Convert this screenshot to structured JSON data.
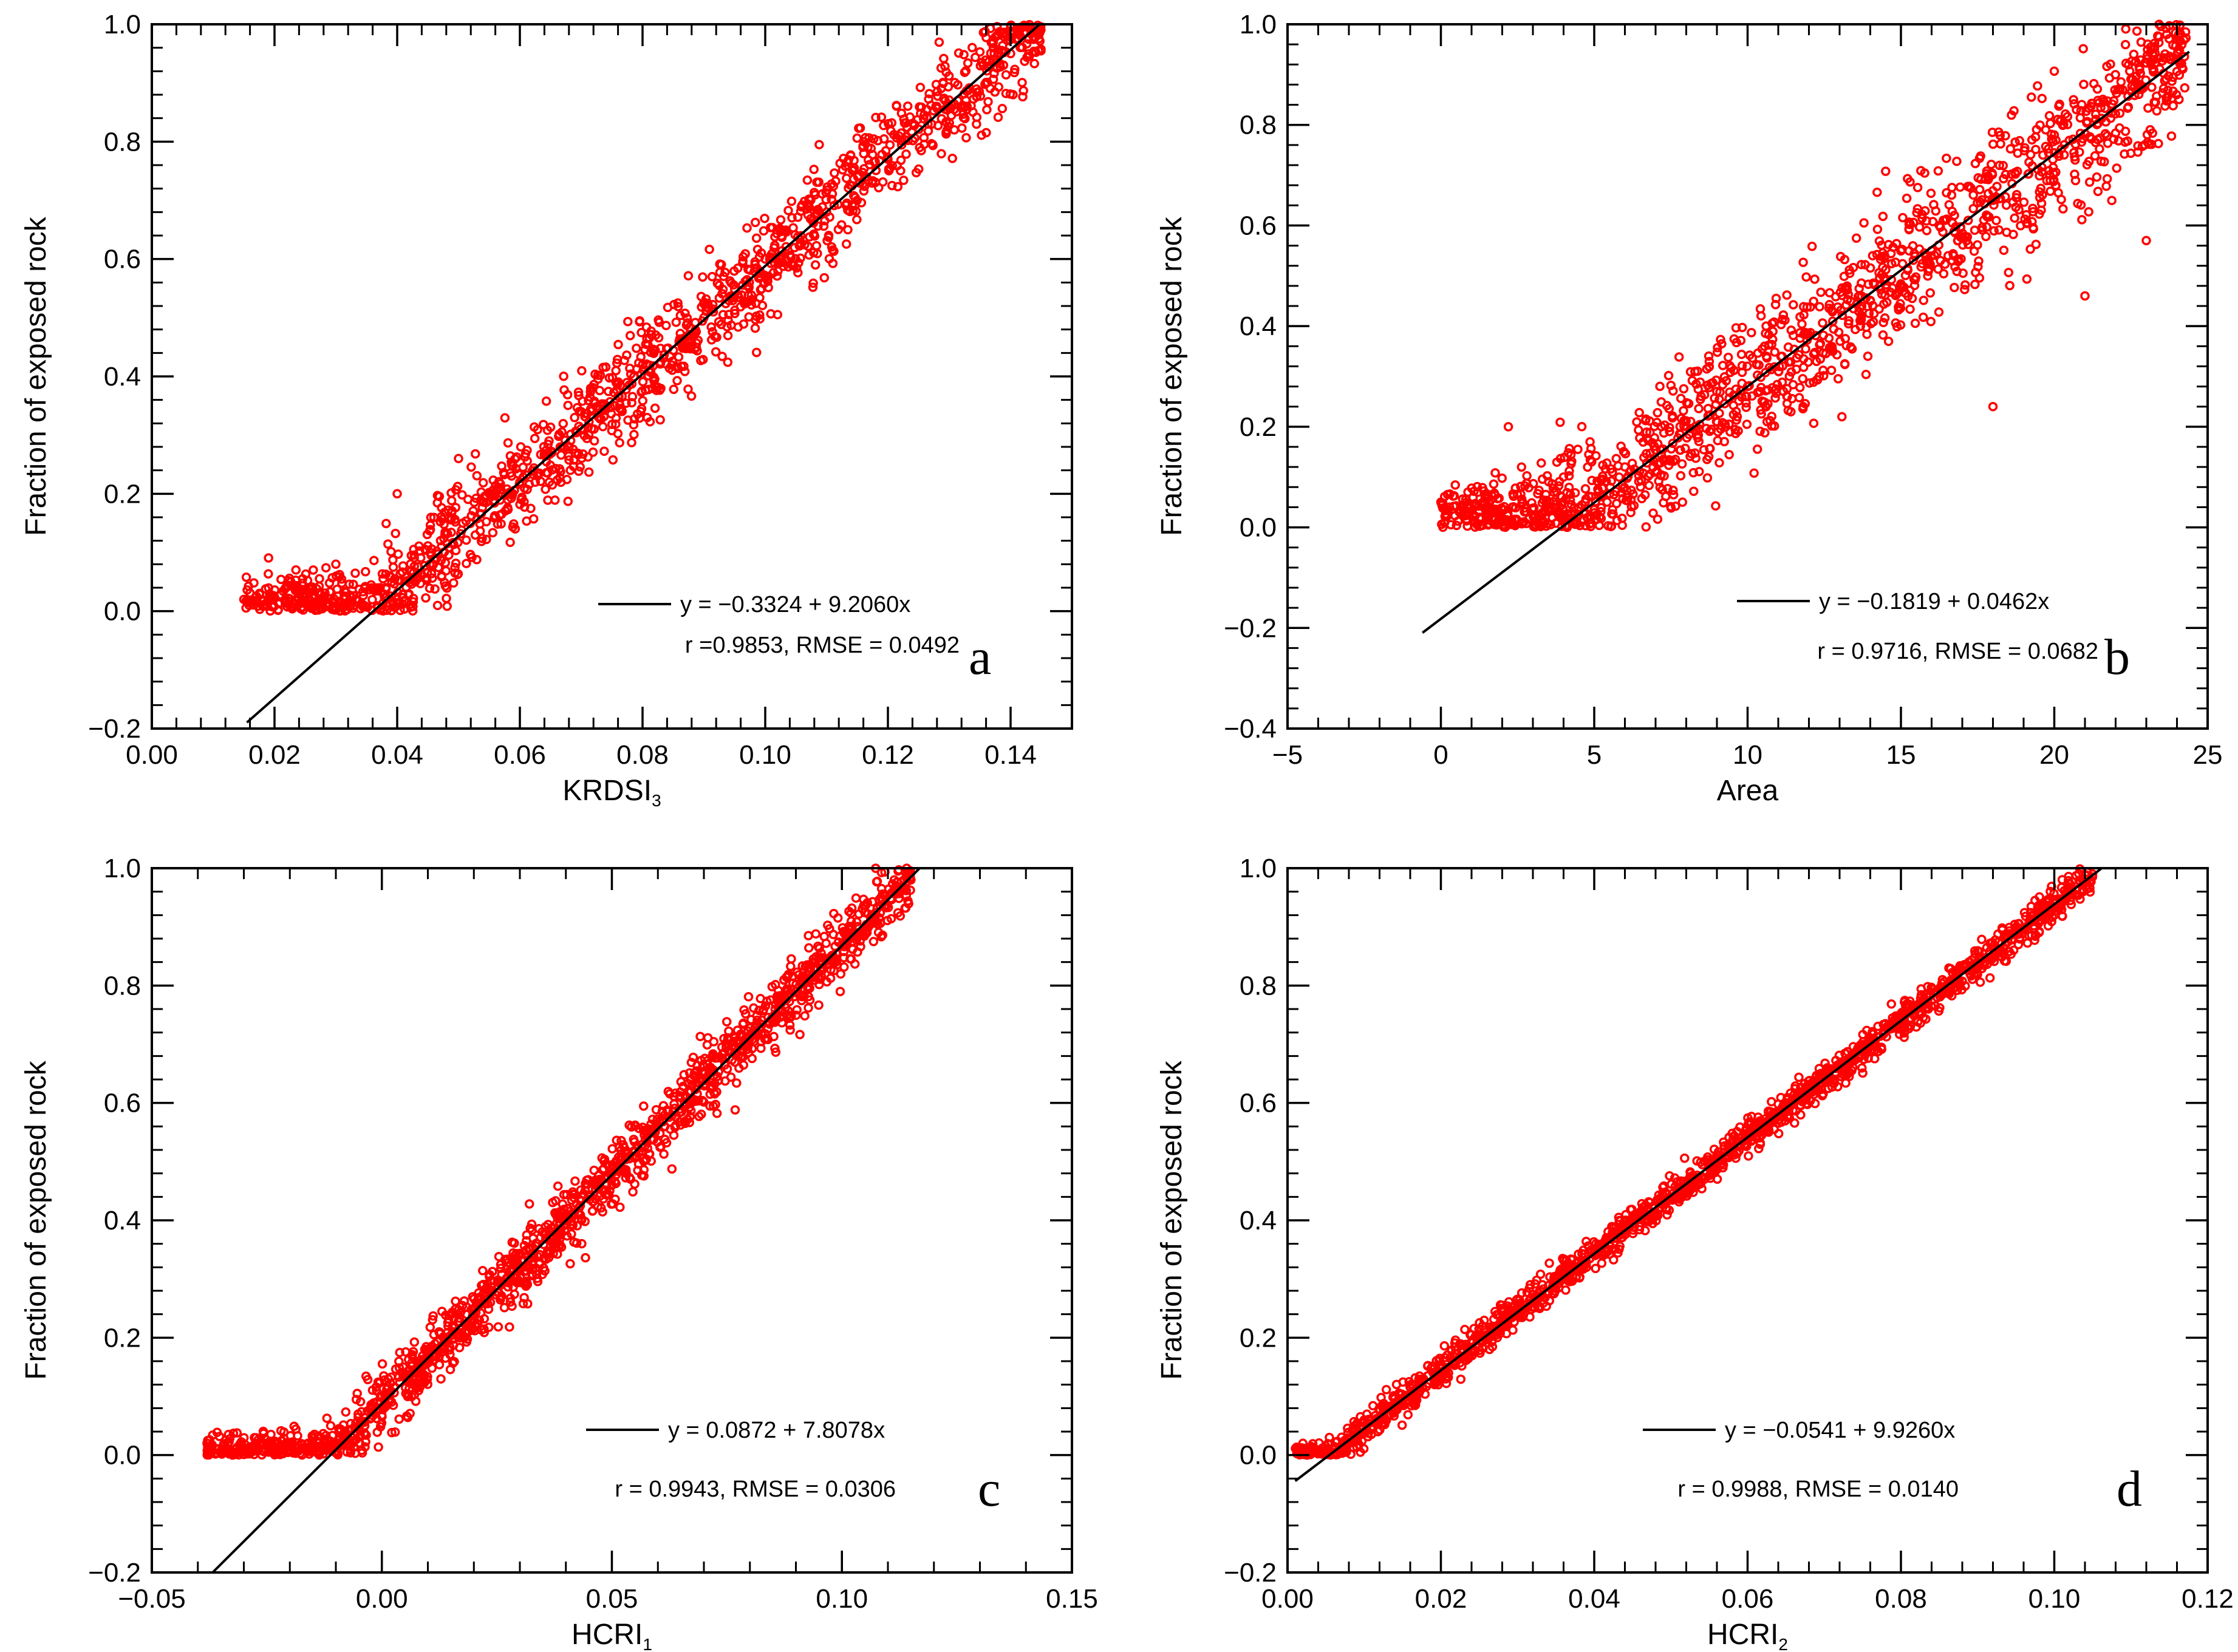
{
  "figure": {
    "colors": {
      "points": "#ff0000",
      "fit_line": "#000000",
      "axes": "#000000"
    }
  },
  "chart_data": [
    {
      "type": "scatter",
      "panel": "a",
      "title": "",
      "xlabel": "KRDSI",
      "xlabel_sub": "3",
      "ylabel": "Fraction of exposed rock",
      "xlim": [
        0.0,
        0.15
      ],
      "ylim": [
        -0.2,
        1.0
      ],
      "xticks": [
        0.0,
        0.02,
        0.04,
        0.06,
        0.08,
        0.1,
        0.12,
        0.14
      ],
      "xtick_labels": [
        "0.00",
        "0.02",
        "0.04",
        "0.06",
        "0.08",
        "0.10",
        "0.12",
        "0.14"
      ],
      "yticks": [
        -0.2,
        0.0,
        0.2,
        0.4,
        0.6,
        0.8,
        1.0
      ],
      "ytick_labels": [
        "−0.2",
        "0.0",
        "0.2",
        "0.4",
        "0.6",
        "0.8",
        "1.0"
      ],
      "fit": {
        "intercept": -0.3324,
        "slope": 9.206,
        "x_range": [
          0.0155,
          0.1448
        ]
      },
      "legend": {
        "equation": "y = −0.3324 + 9.2060x",
        "stats": "r =0.9853, RMSE = 0.0492"
      },
      "scatter_model": {
        "x_min": 0.015,
        "x_max": 0.145,
        "noise_sd": 0.045,
        "n": 1400,
        "floor": 0.0,
        "ceiling": 1.0
      },
      "points_sample": [
        [
          0.015,
          0.02
        ],
        [
          0.03,
          0.08
        ],
        [
          0.04,
          0.2
        ],
        [
          0.05,
          0.26
        ],
        [
          0.06,
          0.22
        ],
        [
          0.07,
          0.34
        ],
        [
          0.08,
          0.42
        ],
        [
          0.09,
          0.5
        ],
        [
          0.1,
          0.6
        ],
        [
          0.11,
          0.68
        ],
        [
          0.12,
          0.77
        ],
        [
          0.13,
          0.86
        ],
        [
          0.14,
          0.95
        ]
      ]
    },
    {
      "type": "scatter",
      "panel": "b",
      "title": "",
      "xlabel": "Area",
      "xlabel_sub": "",
      "ylabel": "Fraction of exposed rock",
      "xlim": [
        -5,
        25
      ],
      "ylim": [
        -0.4,
        1.0
      ],
      "xticks": [
        -5,
        0,
        5,
        10,
        15,
        20,
        25
      ],
      "xtick_labels": [
        "−5",
        "0",
        "5",
        "10",
        "15",
        "20",
        "25"
      ],
      "yticks": [
        -0.4,
        -0.2,
        0.0,
        0.2,
        0.4,
        0.6,
        0.8,
        1.0
      ],
      "ytick_labels": [
        "−0.4",
        "−0.2",
        "0.0",
        "0.2",
        "0.4",
        "0.6",
        "0.8",
        "1.0"
      ],
      "fit": {
        "intercept": -0.1819,
        "slope": 0.0462,
        "x_range": [
          -0.6,
          24.4
        ]
      },
      "legend": {
        "equation": "y = −0.1819 + 0.0462x",
        "stats": "r = 0.9716, RMSE = 0.0682"
      },
      "scatter_model": {
        "x_min": 0.0,
        "x_max": 24.3,
        "noise_sd": 0.07,
        "n": 1400,
        "floor": 0.0,
        "ceiling": 1.0
      },
      "points_sample": [
        [
          0.0,
          0.05
        ],
        [
          2.2,
          0.2
        ],
        [
          4.0,
          0.1
        ],
        [
          6.0,
          0.12
        ],
        [
          8.0,
          0.2
        ],
        [
          10.0,
          0.28
        ],
        [
          12.0,
          0.38
        ],
        [
          14.0,
          0.45
        ],
        [
          16.0,
          0.55
        ],
        [
          18.0,
          0.65
        ],
        [
          18.0,
          0.24
        ],
        [
          20.0,
          0.78
        ],
        [
          21.0,
          0.46
        ],
        [
          23.0,
          0.57
        ],
        [
          24.0,
          0.97
        ]
      ]
    },
    {
      "type": "scatter",
      "panel": "c",
      "title": "",
      "xlabel": "HCRI",
      "xlabel_sub": "1",
      "ylabel": "Fraction of exposed rock",
      "xlim": [
        -0.05,
        0.15
      ],
      "ylim": [
        -0.2,
        1.0
      ],
      "xticks": [
        -0.05,
        0.0,
        0.05,
        0.1,
        0.15
      ],
      "xtick_labels": [
        "−0.05",
        "0.00",
        "0.05",
        "0.10",
        "0.15"
      ],
      "yticks": [
        -0.2,
        0.0,
        0.2,
        0.4,
        0.6,
        0.8,
        1.0
      ],
      "ytick_labels": [
        "−0.2",
        "0.0",
        "0.2",
        "0.4",
        "0.6",
        "0.8",
        "1.0"
      ],
      "fit": {
        "intercept": 0.0872,
        "slope": 7.8078,
        "x_range": [
          -0.0368,
          0.1169
        ]
      },
      "legend": {
        "equation": "y = 0.0872 + 7.8078x",
        "stats": "r = 0.9943, RMSE = 0.0306"
      },
      "scatter_model": {
        "x_min": -0.038,
        "x_max": 0.115,
        "noise_sd": 0.028,
        "n": 1500,
        "floor": 0.0,
        "ceiling": 1.0
      },
      "points_sample": [
        [
          -0.038,
          0.02
        ],
        [
          -0.025,
          0.02
        ],
        [
          -0.015,
          0.01
        ],
        [
          0.0,
          0.1
        ],
        [
          0.01,
          0.17
        ],
        [
          0.02,
          0.25
        ],
        [
          0.03,
          0.32
        ],
        [
          0.04,
          0.4
        ],
        [
          0.05,
          0.48
        ],
        [
          0.06,
          0.56
        ],
        [
          0.07,
          0.63
        ],
        [
          0.08,
          0.71
        ],
        [
          0.09,
          0.79
        ],
        [
          0.1,
          0.87
        ],
        [
          0.115,
          0.98
        ]
      ]
    },
    {
      "type": "scatter",
      "panel": "d",
      "title": "",
      "xlabel": "HCRI",
      "xlabel_sub": "2",
      "ylabel": "Fraction of exposed rock",
      "xlim": [
        0.0,
        0.12
      ],
      "ylim": [
        -0.2,
        1.0
      ],
      "xticks": [
        0.0,
        0.02,
        0.04,
        0.06,
        0.08,
        0.1,
        0.12
      ],
      "xtick_labels": [
        "0.00",
        "0.02",
        "0.04",
        "0.06",
        "0.08",
        "0.10",
        "0.12"
      ],
      "yticks": [
        -0.2,
        0.0,
        0.2,
        0.4,
        0.6,
        0.8,
        1.0
      ],
      "ytick_labels": [
        "−0.2",
        "0.0",
        "0.2",
        "0.4",
        "0.6",
        "0.8",
        "1.0"
      ],
      "fit": {
        "intercept": -0.0541,
        "slope": 9.926,
        "x_range": [
          0.001,
          0.1061
        ]
      },
      "legend": {
        "equation": "y = −0.0541 + 9.9260x",
        "stats": "r = 0.9988, RMSE = 0.0140"
      },
      "scatter_model": {
        "x_min": 0.001,
        "x_max": 0.105,
        "noise_sd": 0.014,
        "n": 1600,
        "floor": 0.0,
        "ceiling": 1.0
      },
      "points_sample": [
        [
          0.002,
          0.02
        ],
        [
          0.01,
          0.06
        ],
        [
          0.02,
          0.15
        ],
        [
          0.03,
          0.25
        ],
        [
          0.04,
          0.35
        ],
        [
          0.05,
          0.44
        ],
        [
          0.06,
          0.54
        ],
        [
          0.07,
          0.64
        ],
        [
          0.08,
          0.74
        ],
        [
          0.09,
          0.84
        ],
        [
          0.1,
          0.94
        ],
        [
          0.105,
          0.99
        ]
      ]
    }
  ]
}
